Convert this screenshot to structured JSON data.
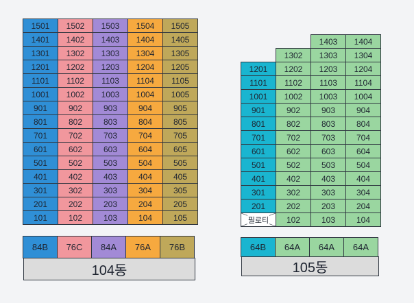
{
  "colors": {
    "blue": "#2f8fd6",
    "pink": "#f1979d",
    "purple": "#a28ad6",
    "orange": "#f6a93f",
    "olive": "#bfa85a",
    "cyan": "#1ab5d0",
    "green": "#9ad6a0",
    "label_bg": "#dcdcdc"
  },
  "b104": {
    "label": "104동",
    "rows": [
      [
        "1501",
        "1502",
        "1503",
        "1504",
        "1505"
      ],
      [
        "1401",
        "1402",
        "1403",
        "1404",
        "1405"
      ],
      [
        "1301",
        "1302",
        "1303",
        "1304",
        "1305"
      ],
      [
        "1201",
        "1202",
        "1203",
        "1204",
        "1205"
      ],
      [
        "1101",
        "1102",
        "1103",
        "1104",
        "1105"
      ],
      [
        "1001",
        "1002",
        "1003",
        "1004",
        "1005"
      ],
      [
        "901",
        "902",
        "903",
        "904",
        "905"
      ],
      [
        "801",
        "802",
        "803",
        "804",
        "805"
      ],
      [
        "701",
        "702",
        "703",
        "704",
        "705"
      ],
      [
        "601",
        "602",
        "603",
        "604",
        "605"
      ],
      [
        "501",
        "502",
        "503",
        "504",
        "505"
      ],
      [
        "401",
        "402",
        "403",
        "404",
        "405"
      ],
      [
        "301",
        "302",
        "303",
        "304",
        "305"
      ],
      [
        "201",
        "202",
        "203",
        "204",
        "205"
      ],
      [
        "101",
        "102",
        "103",
        "104",
        "105"
      ]
    ],
    "column_colors": [
      "blue",
      "pink",
      "purple",
      "orange",
      "olive"
    ],
    "types": [
      "84B",
      "76C",
      "84A",
      "76A",
      "76B"
    ]
  },
  "b105": {
    "label": "105동",
    "rows": [
      [
        "",
        "",
        "1403",
        "1404"
      ],
      [
        "",
        "1302",
        "1303",
        "1304"
      ],
      [
        "1201",
        "1202",
        "1203",
        "1204"
      ],
      [
        "1101",
        "1102",
        "1103",
        "1104"
      ],
      [
        "1001",
        "1002",
        "1003",
        "1004"
      ],
      [
        "901",
        "902",
        "903",
        "904"
      ],
      [
        "801",
        "802",
        "803",
        "804"
      ],
      [
        "701",
        "702",
        "703",
        "704"
      ],
      [
        "601",
        "602",
        "603",
        "604"
      ],
      [
        "501",
        "502",
        "503",
        "504"
      ],
      [
        "401",
        "402",
        "403",
        "404"
      ],
      [
        "301",
        "302",
        "303",
        "304"
      ],
      [
        "201",
        "202",
        "203",
        "204"
      ],
      [
        "필로티",
        "102",
        "103",
        "104"
      ]
    ],
    "column_colors": [
      "cyan",
      "green",
      "green",
      "green"
    ],
    "types": [
      "64B",
      "64A",
      "64A",
      "64A"
    ],
    "piloti_label": "필로티"
  }
}
